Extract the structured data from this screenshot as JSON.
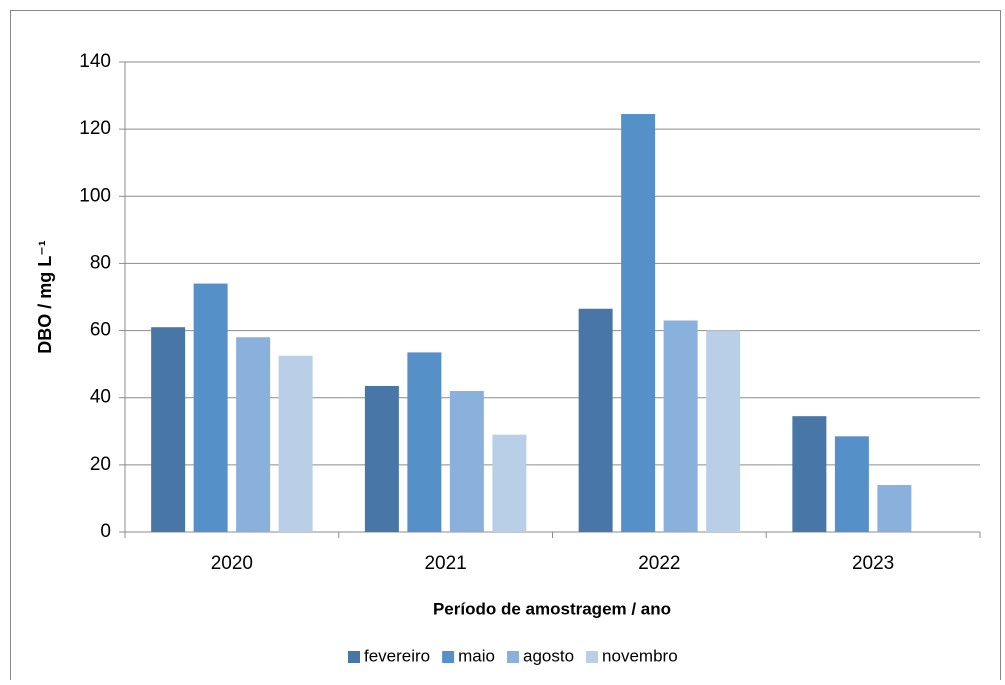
{
  "chart_data": {
    "type": "bar",
    "xlabel": "Período de amostragem / ano",
    "ylabel": "DBO / mg L⁻¹",
    "categories": [
      "2020",
      "2021",
      "2022",
      "2023"
    ],
    "series": [
      {
        "name": "fevereiro",
        "color": "#4877a7",
        "values": [
          61,
          43.5,
          66.5,
          34.5
        ]
      },
      {
        "name": "maio",
        "color": "#5590c8",
        "values": [
          74,
          53.5,
          124.5,
          28.5
        ]
      },
      {
        "name": "agosto",
        "color": "#8ab0dc",
        "values": [
          58,
          42,
          63,
          14
        ]
      },
      {
        "name": "novembro",
        "color": "#b9cfe8",
        "values": [
          52.5,
          29,
          60,
          null
        ]
      }
    ],
    "ylim": [
      0,
      140
    ],
    "yticks": [
      0,
      20,
      40,
      60,
      80,
      100,
      120,
      140
    ],
    "grid": true,
    "legend": "bottom"
  }
}
